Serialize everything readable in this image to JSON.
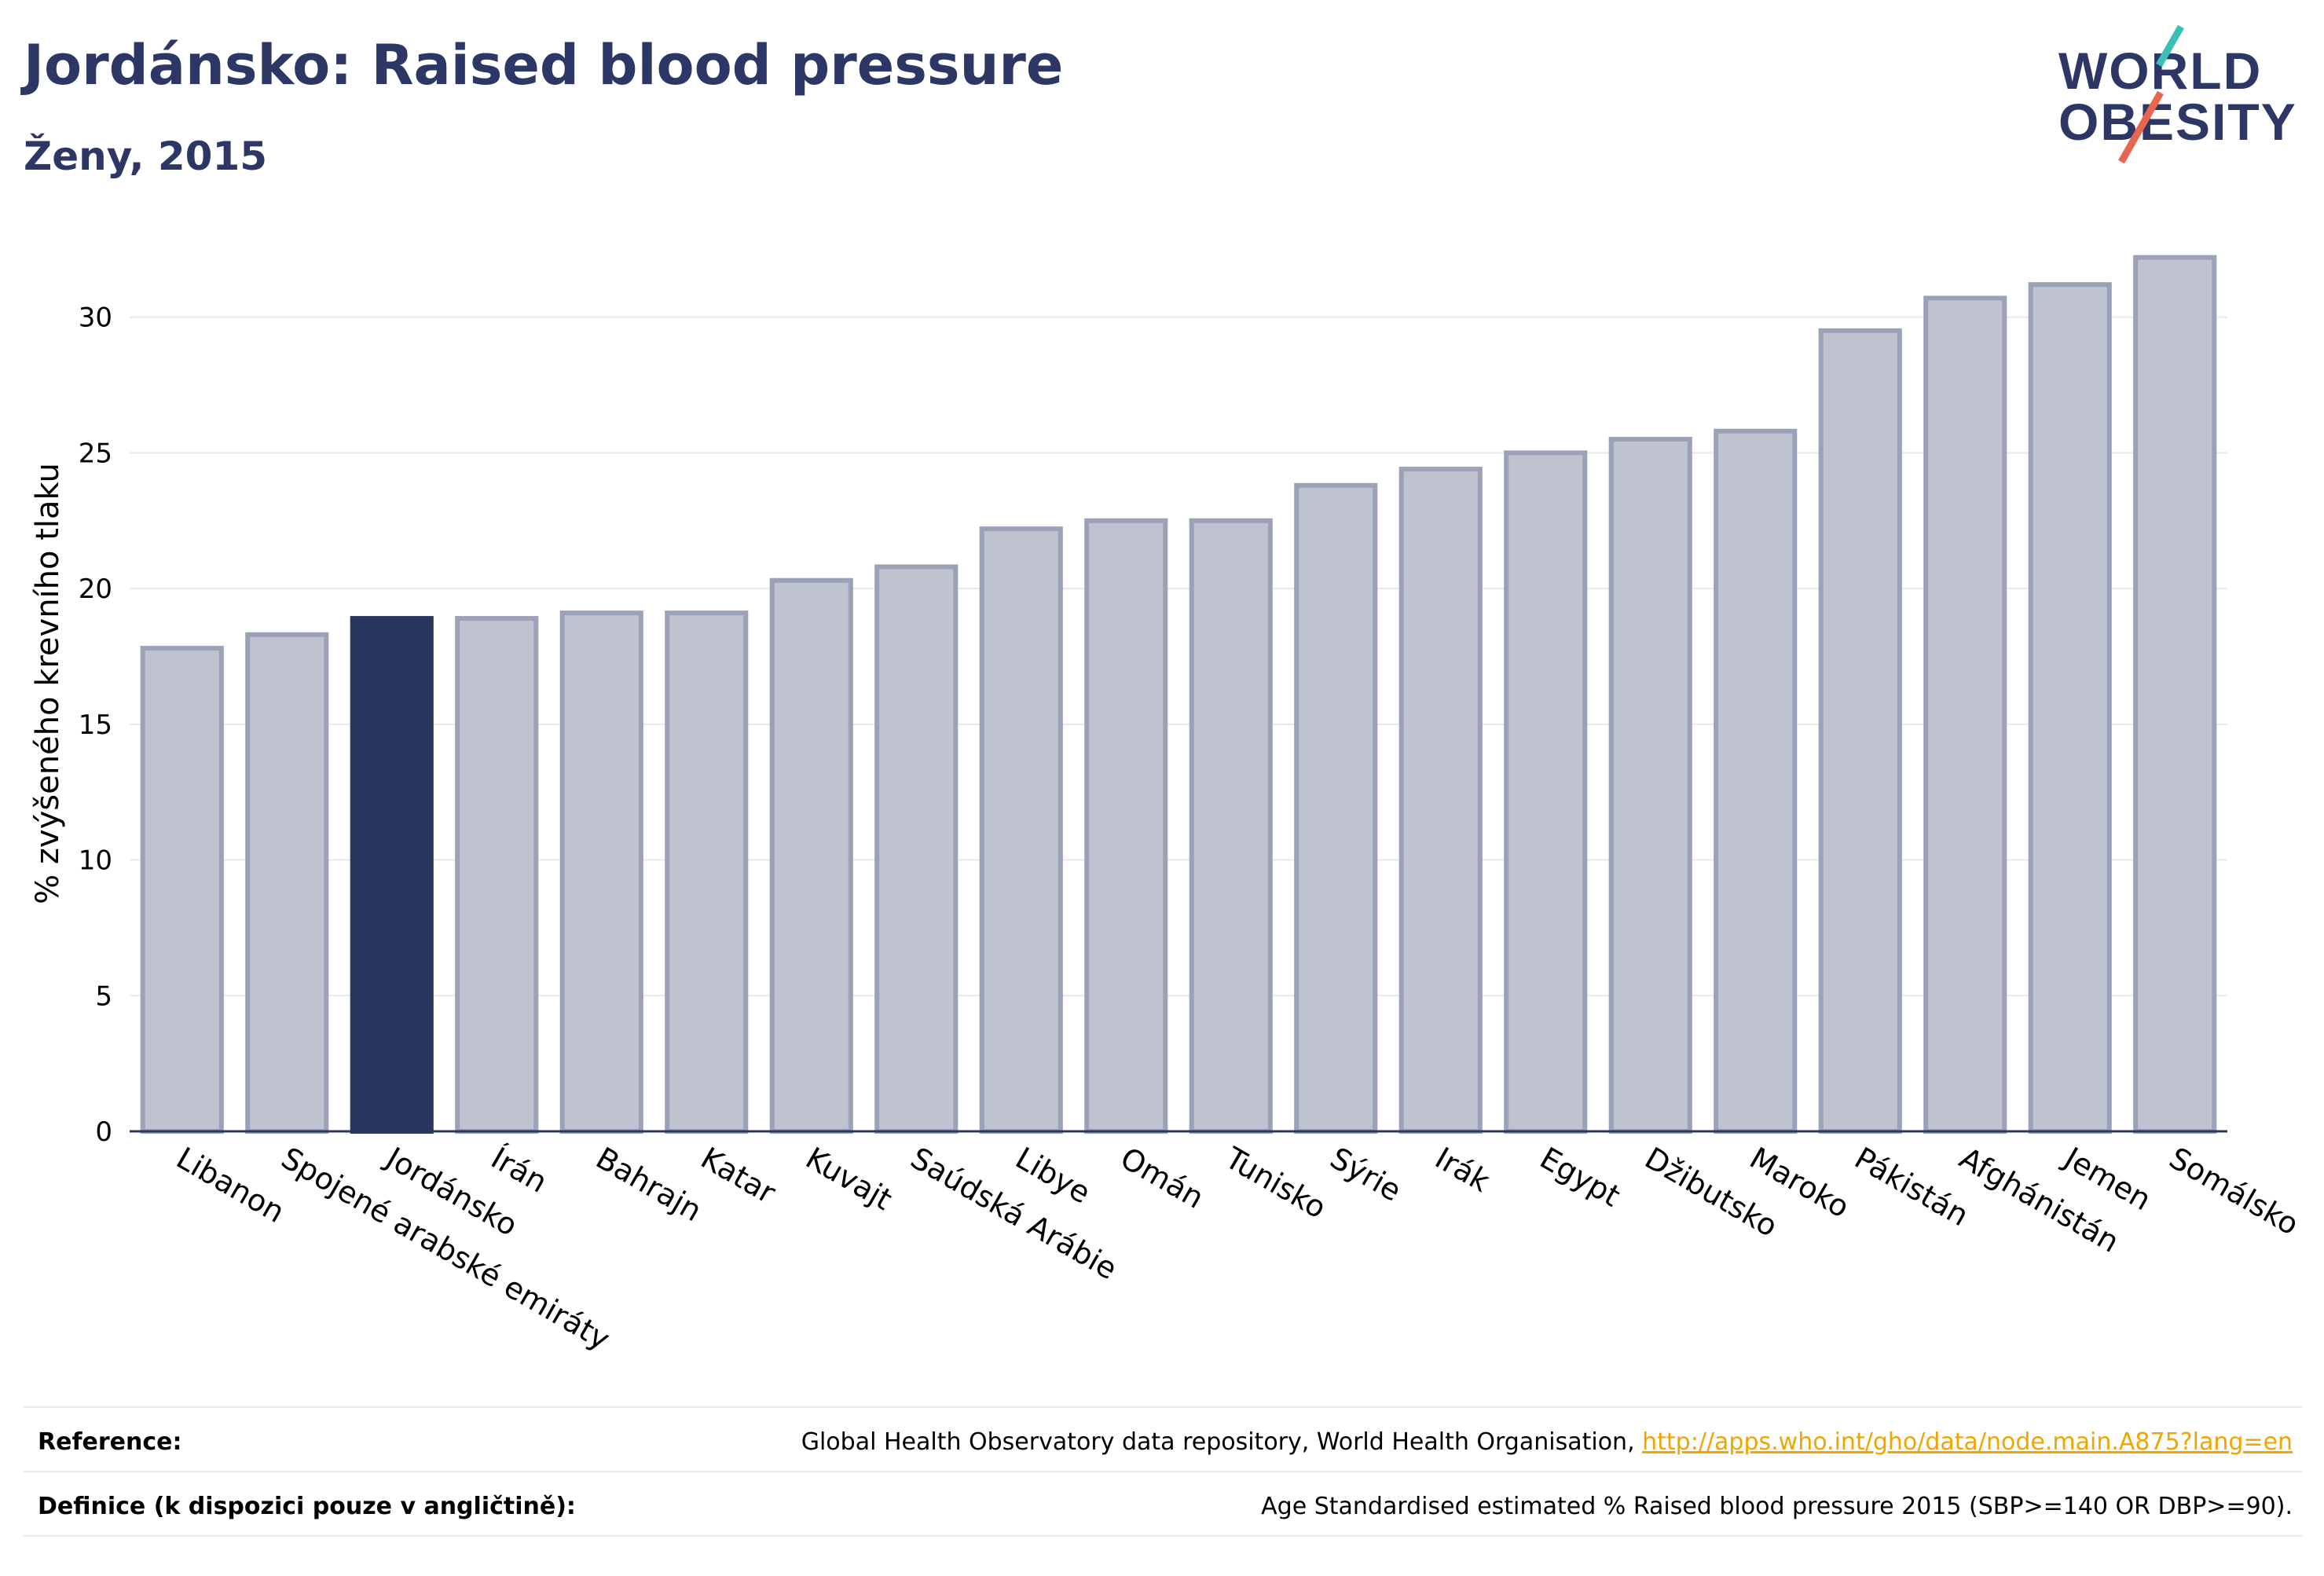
{
  "header": {
    "title": "Jordánsko: Raised blood pressure",
    "subtitle": "Ženy, 2015"
  },
  "logo": {
    "line1": "WORLD",
    "line2": "OBESITY"
  },
  "colors": {
    "highlight": "#2b365e",
    "bar": "#bfc3d0",
    "bar_border": "#9ba1b7",
    "grid": "#e6e8ee",
    "text": "#2b365e"
  },
  "chart_data": {
    "type": "bar",
    "title": "Jordánsko: Raised blood pressure",
    "subtitle": "Ženy, 2015",
    "xlabel": "",
    "ylabel": "% zvýšeného krevního tlaku",
    "ylim": [
      0,
      33
    ],
    "yticks": [
      0,
      5,
      10,
      15,
      20,
      25,
      30
    ],
    "grid": true,
    "highlight_category": "Jordánsko",
    "categories": [
      "Libanon",
      "Spojené arabské emiráty",
      "Jordánsko",
      "Írán",
      "Bahrajn",
      "Katar",
      "Kuvajt",
      "Saúdská Arábie",
      "Libye",
      "Omán",
      "Tunisko",
      "Sýrie",
      "Irák",
      "Egypt",
      "Džibutsko",
      "Maroko",
      "Pákistán",
      "Afghánistán",
      "Jemen",
      "Somálsko"
    ],
    "values": [
      17.8,
      18.3,
      18.9,
      18.9,
      19.1,
      19.1,
      20.3,
      20.8,
      22.2,
      22.5,
      22.5,
      23.8,
      24.4,
      25.0,
      25.5,
      25.8,
      29.5,
      30.7,
      31.2,
      32.2
    ]
  },
  "footer": {
    "reference_label": "Reference:",
    "reference_text": "Global Health Observatory data repository, World Health Organisation, ",
    "reference_link": "http://apps.who.int/gho/data/node.main.A875?lang=en",
    "definition_label": "Definice (k dispozici pouze v angličtině):",
    "definition_text": "Age Standardised estimated % Raised blood pressure 2015 (SBP>=140 OR DBP>=90)."
  }
}
